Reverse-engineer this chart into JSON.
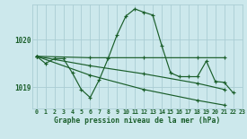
{
  "title": "Graphe pression niveau de la mer (hPa)",
  "bg_color": "#cce8ec",
  "line_color": "#1a5e2a",
  "grid_color": "#aacdd4",
  "ylim": [
    1018.55,
    1020.75
  ],
  "xlim": [
    -0.5,
    23
  ],
  "yticks": [
    1019,
    1020
  ],
  "xticks": [
    0,
    1,
    2,
    3,
    4,
    5,
    6,
    7,
    8,
    9,
    10,
    11,
    12,
    13,
    14,
    15,
    16,
    17,
    18,
    19,
    20,
    21,
    22,
    23
  ],
  "series": [
    {
      "x": [
        0,
        1,
        2,
        3,
        4,
        5,
        6,
        7,
        8,
        9,
        10,
        11,
        12,
        13,
        14,
        15,
        16,
        17,
        18,
        19,
        20,
        21,
        22
      ],
      "y": [
        1019.65,
        1019.5,
        1019.6,
        1019.6,
        1019.3,
        1018.95,
        1018.78,
        1019.15,
        1019.6,
        1020.1,
        1020.5,
        1020.65,
        1020.58,
        1020.52,
        1019.88,
        1019.3,
        1019.22,
        1019.22,
        1019.22,
        1019.55,
        1019.12,
        1019.1,
        1018.88
      ]
    },
    {
      "x": [
        0,
        6,
        12,
        18,
        21
      ],
      "y": [
        1019.65,
        1019.62,
        1019.62,
        1019.62,
        1019.62
      ]
    },
    {
      "x": [
        0,
        6,
        12,
        18,
        21
      ],
      "y": [
        1019.65,
        1019.45,
        1019.28,
        1019.08,
        1018.95
      ]
    },
    {
      "x": [
        0,
        6,
        12,
        18,
        21
      ],
      "y": [
        1019.65,
        1019.25,
        1018.95,
        1018.72,
        1018.62
      ]
    }
  ]
}
